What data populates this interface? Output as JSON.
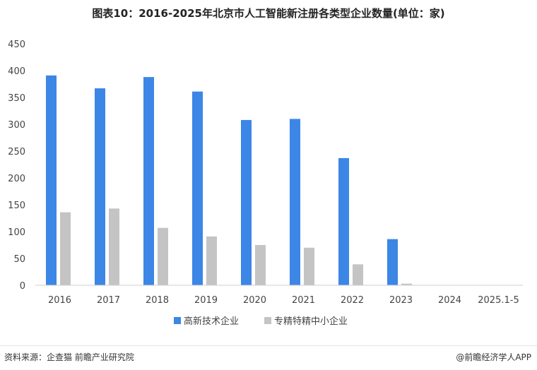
{
  "chart_data": {
    "type": "bar",
    "title": "图表10：2016-2025年北京市人工智能新注册各类型企业数量(单位：家)",
    "categories": [
      "2016",
      "2017",
      "2018",
      "2019",
      "2020",
      "2021",
      "2022",
      "2023",
      "2024",
      "2025.1-5"
    ],
    "series": [
      {
        "name": "高新技术企业",
        "values": [
          391,
          367,
          388,
          361,
          308,
          310,
          237,
          86,
          0,
          0
        ]
      },
      {
        "name": "专精特精中小企业",
        "values": [
          136,
          143,
          107,
          91,
          75,
          70,
          39,
          3,
          0,
          0
        ]
      }
    ],
    "ylim": [
      0,
      450
    ],
    "yticks": [
      0,
      50,
      100,
      150,
      200,
      250,
      300,
      350,
      400,
      450
    ],
    "grid": false,
    "legend_position": "bottom",
    "colors": [
      "#3c86e6",
      "#c4c4c4"
    ]
  },
  "footer": {
    "source": "资料来源：企查猫 前瞻产业研究院",
    "brand": "@前瞻经济学人APP"
  }
}
